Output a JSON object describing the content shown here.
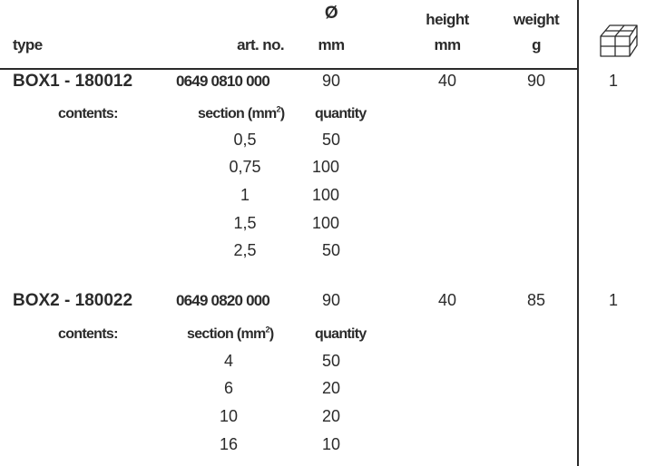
{
  "header": {
    "type": "type",
    "art_no": "art. no.",
    "diameter_symbol": "Ø",
    "diameter_unit": "mm",
    "height": "height",
    "height_unit": "mm",
    "weight": "weight",
    "weight_unit": "g",
    "package_icon": "package-box-icon"
  },
  "labels": {
    "contents": "contents:",
    "section": "section (mm",
    "section_exp": "2",
    "section_close": ")",
    "quantity": "quantity"
  },
  "boxes": [
    {
      "type": "BOX1 - 180012",
      "art_no": "0649 0810 000",
      "diameter": "90",
      "height": "40",
      "weight": "90",
      "packs": "1",
      "contents": [
        {
          "section": "0,5",
          "quantity": "50"
        },
        {
          "section": "0,75",
          "quantity": "100"
        },
        {
          "section": "1",
          "quantity": "100"
        },
        {
          "section": "1,5",
          "quantity": "100"
        },
        {
          "section": "2,5",
          "quantity": "50"
        }
      ]
    },
    {
      "type": "BOX2 - 180022",
      "art_no": "0649 0820 000",
      "diameter": "90",
      "height": "40",
      "weight": "85",
      "packs": "1",
      "contents": [
        {
          "section": "4",
          "quantity": "50"
        },
        {
          "section": "6",
          "quantity": "20"
        },
        {
          "section": "10",
          "quantity": "20"
        },
        {
          "section": "16",
          "quantity": "10"
        }
      ]
    }
  ]
}
